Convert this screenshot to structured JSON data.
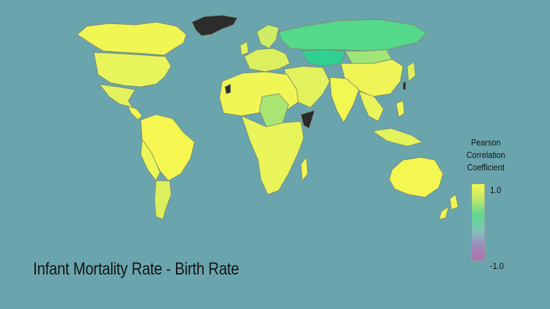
{
  "title": "Infant Mortality Rate - Birth Rate",
  "legend": {
    "heading_lines": [
      "Pearson",
      "Correlation",
      "Coefficient"
    ],
    "max_label": "1.0",
    "min_label": "-1.0",
    "colors": [
      "#f6f84f",
      "#bfe96a",
      "#5ed88f",
      "#7dc6b8",
      "#9d8cc1",
      "#b16fae"
    ]
  },
  "colors": {
    "background": "#6aa5ae",
    "border": "#7a8a73",
    "no_data": "#2c2c2c"
  },
  "map_style": {
    "projection": "world-equirectangular",
    "borders": true
  }
}
